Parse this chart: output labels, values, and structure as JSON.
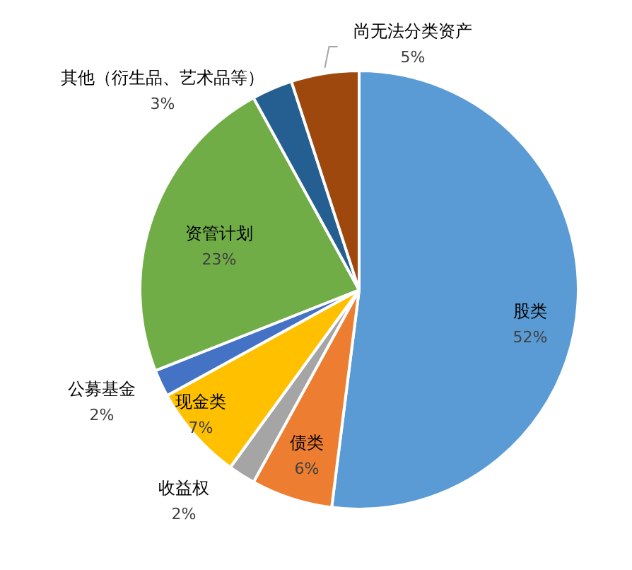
{
  "chart_data": {
    "type": "pie",
    "categories": [
      "股类",
      "债类",
      "收益权",
      "现金类",
      "公募基金",
      "资管计划",
      "其他（衍生品、艺术品等）",
      "尚无法分类资产"
    ],
    "values": [
      52,
      6,
      2,
      7,
      2,
      23,
      3,
      5
    ],
    "colors": [
      "#5b9bd5",
      "#ed7d31",
      "#a5a5a5",
      "#ffc000",
      "#4472c4",
      "#70ad47",
      "#255e91",
      "#9e480e"
    ],
    "value_labels": [
      "52%",
      "6%",
      "2%",
      "7%",
      "2%",
      "23%",
      "3%",
      "5%"
    ]
  }
}
